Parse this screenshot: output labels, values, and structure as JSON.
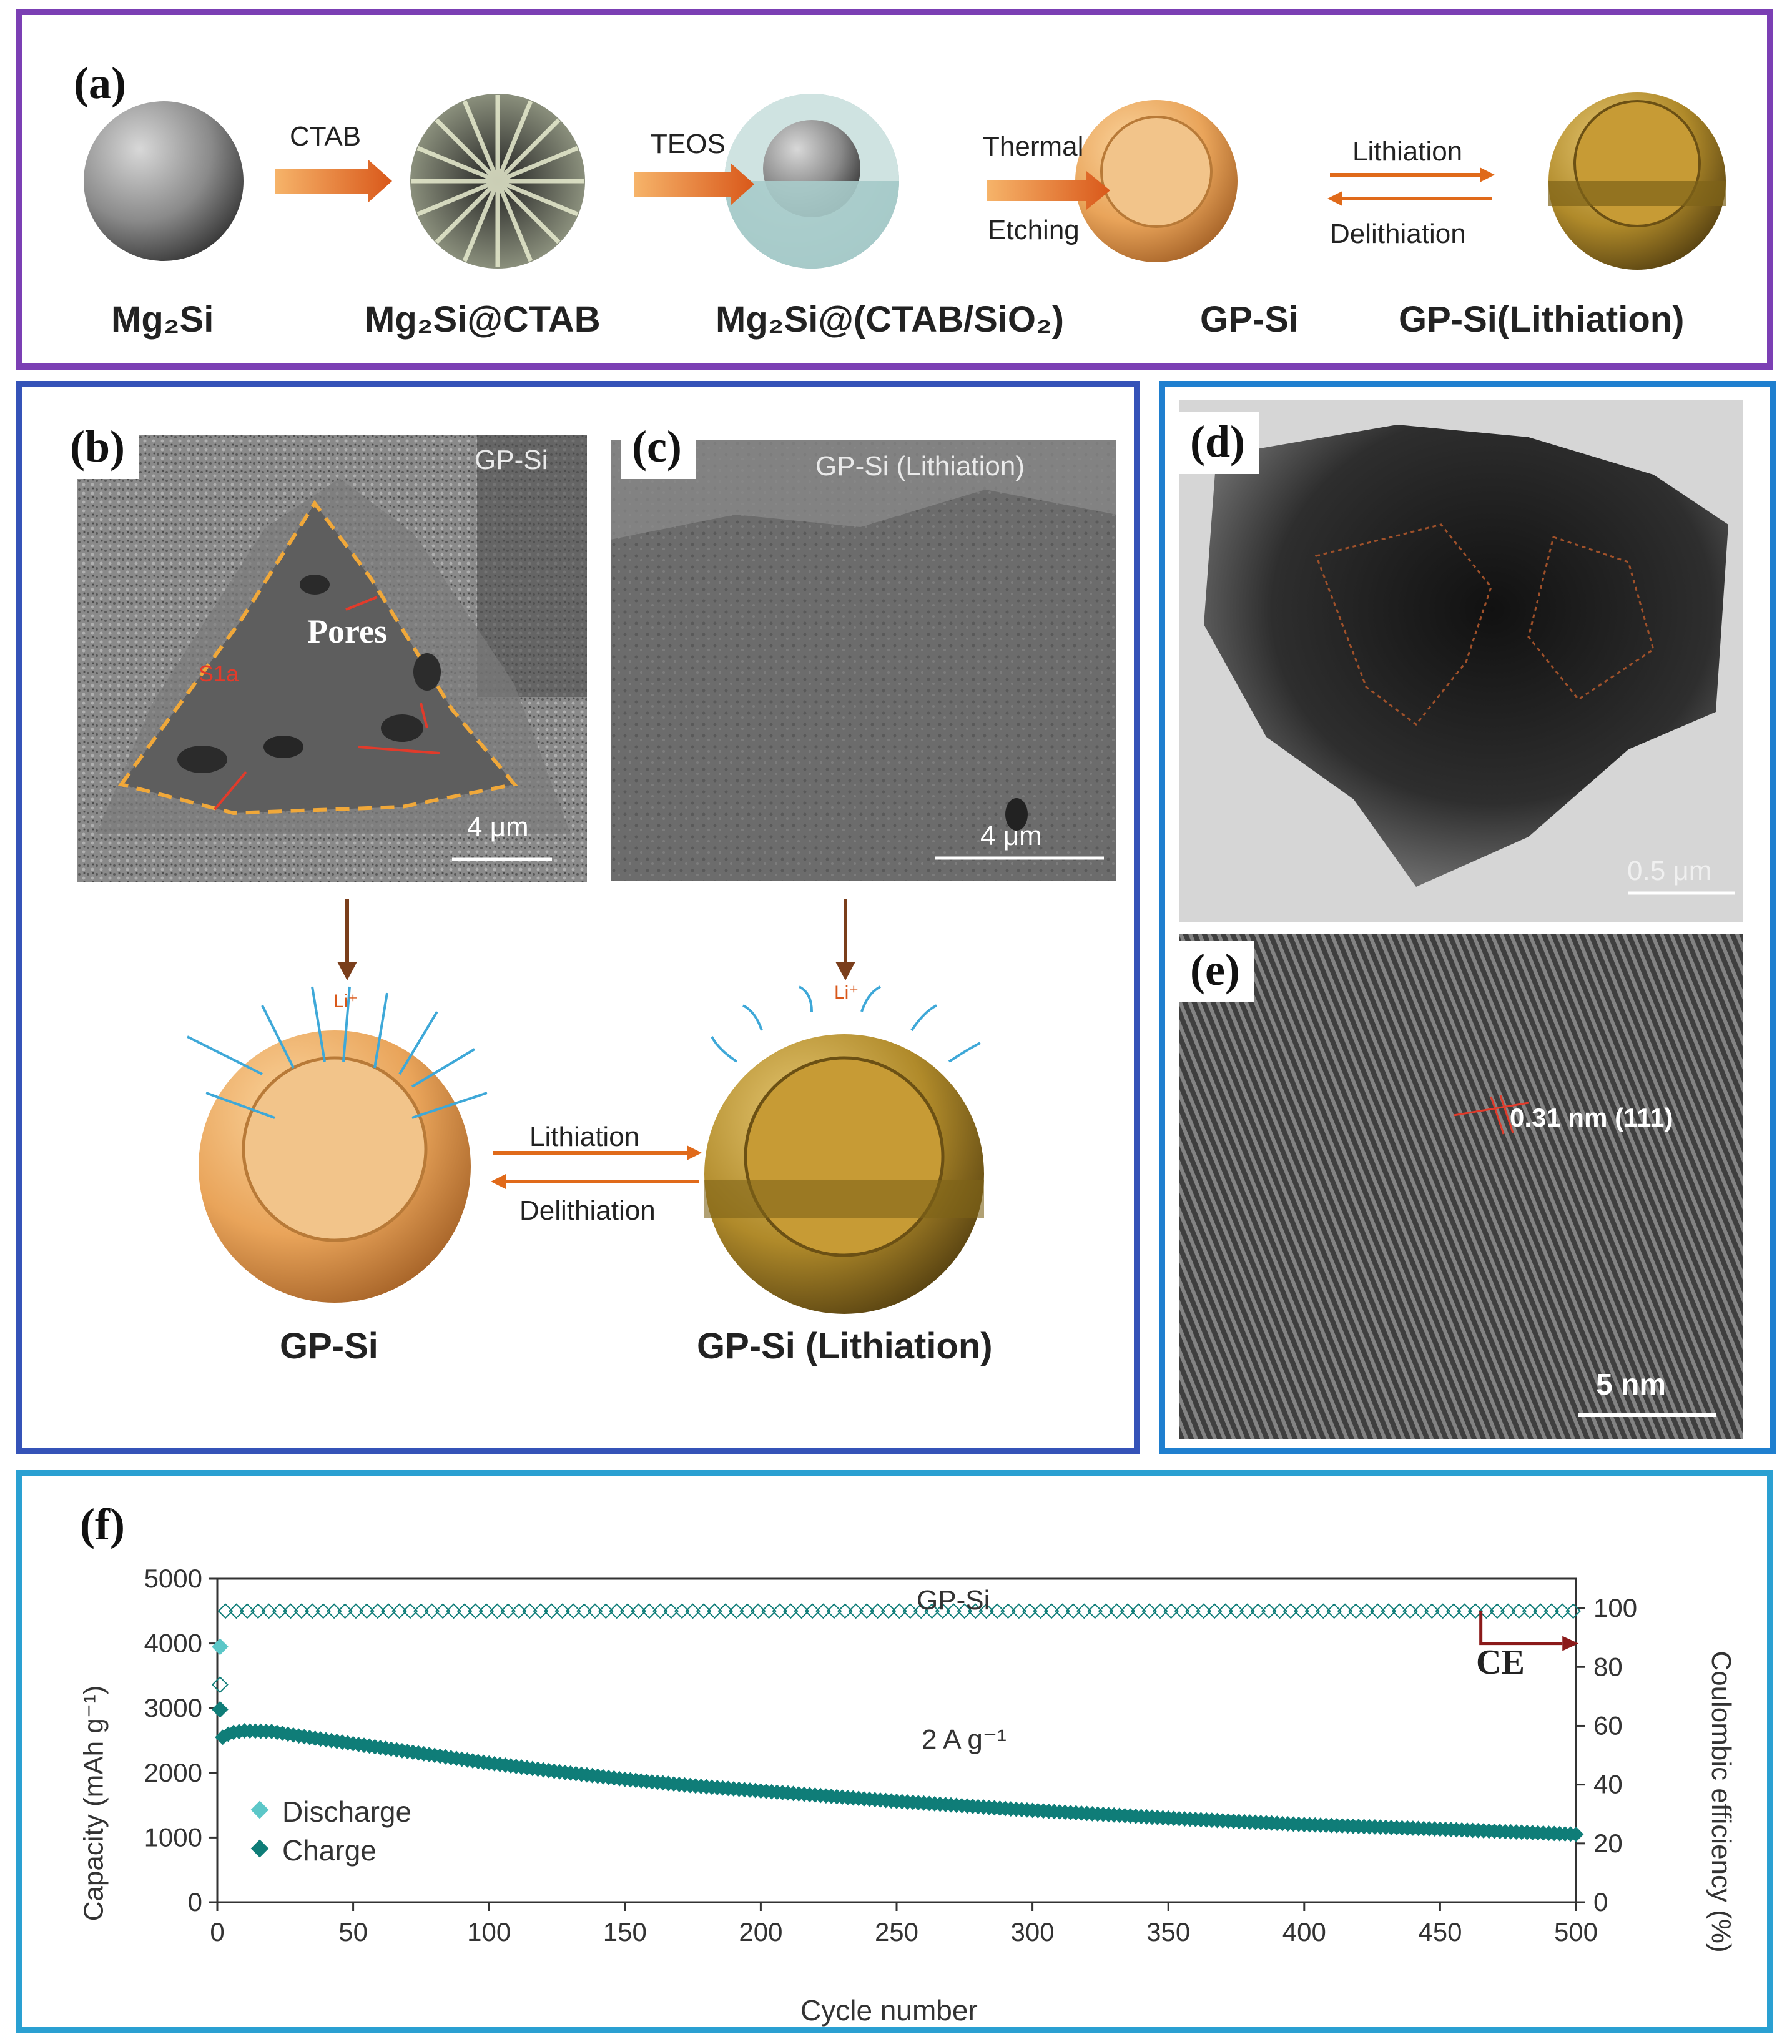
{
  "colors": {
    "frame_a": "#7b3fb4",
    "frame_bc": "#3553b8",
    "frame_de": "#1f7fcf",
    "frame_f": "#2aa0d2",
    "sphere_orange": "#e9a45a",
    "sphere_gold": "#b08a2a",
    "arrow_orange": "#e06a1a",
    "teal_dark": "#0f7d78",
    "teal_light": "#5cc7c8",
    "ce_arrow": "#8b1a1a"
  },
  "panel_a": {
    "label": "(a)",
    "steps": [
      {
        "caption": "Mg₂Si"
      },
      {
        "caption": "Mg₂Si@CTAB"
      },
      {
        "caption": "Mg₂Si@(CTAB/SiO₂)"
      },
      {
        "caption": "GP-Si"
      },
      {
        "caption": "GP-Si(Lithiation)"
      }
    ],
    "arrows": {
      "ctab": "CTAB",
      "teos": "TEOS",
      "thermal": "Thermal",
      "etching": "Etching",
      "lithiation": "Lithiation",
      "delithiation": "Delithiation"
    }
  },
  "panel_b": {
    "label": "(b)",
    "tag": "GP-Si",
    "pores": "Pores",
    "s1a": "S1a",
    "scale": "4 μm",
    "sphere_caption": "GP-Si",
    "li": "Li⁺"
  },
  "panel_c": {
    "label": "(c)",
    "tag": "GP-Si (Lithiation)",
    "scale": "4 μm",
    "sphere_caption": "GP-Si (Lithiation)",
    "li": "Li⁺"
  },
  "bc_arrows": {
    "lithiation": "Lithiation",
    "delithiation": "Delithiation"
  },
  "panel_d": {
    "label": "(d)",
    "scale": "0.5 μm"
  },
  "panel_e": {
    "label": "(e)",
    "spacing": "0.31 nm (111)",
    "scale": "5 nm"
  },
  "panel_f": {
    "label": "(f)",
    "ce": "CE",
    "series_name": "GP-Si",
    "rate": "2 A g⁻¹",
    "legend": [
      "Discharge",
      "Charge"
    ],
    "xlabel": "Cycle number",
    "ylabel_left": "Capacity (mAh g⁻¹)",
    "ylabel_right": "Coulombic efficiency (%)"
  },
  "chart_data": {
    "type": "scatter",
    "title": "",
    "xlabel": "Cycle number",
    "ylabel": "Capacity (mAh g⁻¹)",
    "y2label": "Coulombic efficiency (%)",
    "xlim": [
      0,
      500
    ],
    "ylim": [
      0,
      5000
    ],
    "y2lim": [
      0,
      110
    ],
    "x_ticks": [
      0,
      50,
      100,
      150,
      200,
      250,
      300,
      350,
      400,
      450,
      500
    ],
    "y_ticks": [
      0,
      1000,
      2000,
      3000,
      4000,
      5000
    ],
    "y2_ticks": [
      0,
      20,
      40,
      60,
      80,
      100
    ],
    "series": [
      {
        "name": "Discharge",
        "axis": "left",
        "x": [
          1
        ],
        "y": [
          3950
        ]
      },
      {
        "name": "Charge",
        "axis": "left",
        "x": [
          1,
          2,
          5,
          10,
          20,
          30,
          50,
          75,
          100,
          125,
          150,
          175,
          200,
          250,
          300,
          350,
          400,
          450,
          500
        ],
        "y": [
          2980,
          2550,
          2620,
          2650,
          2640,
          2570,
          2450,
          2300,
          2150,
          2020,
          1900,
          1800,
          1720,
          1560,
          1420,
          1300,
          1200,
          1130,
          1050
        ]
      },
      {
        "name": "CE",
        "axis": "right",
        "x": [
          1,
          2,
          3,
          500
        ],
        "y": [
          74,
          99,
          99,
          99
        ]
      }
    ],
    "annotations": [
      "GP-Si",
      "2 A g⁻¹",
      "CE"
    ],
    "legend_position": "bottom-left"
  }
}
